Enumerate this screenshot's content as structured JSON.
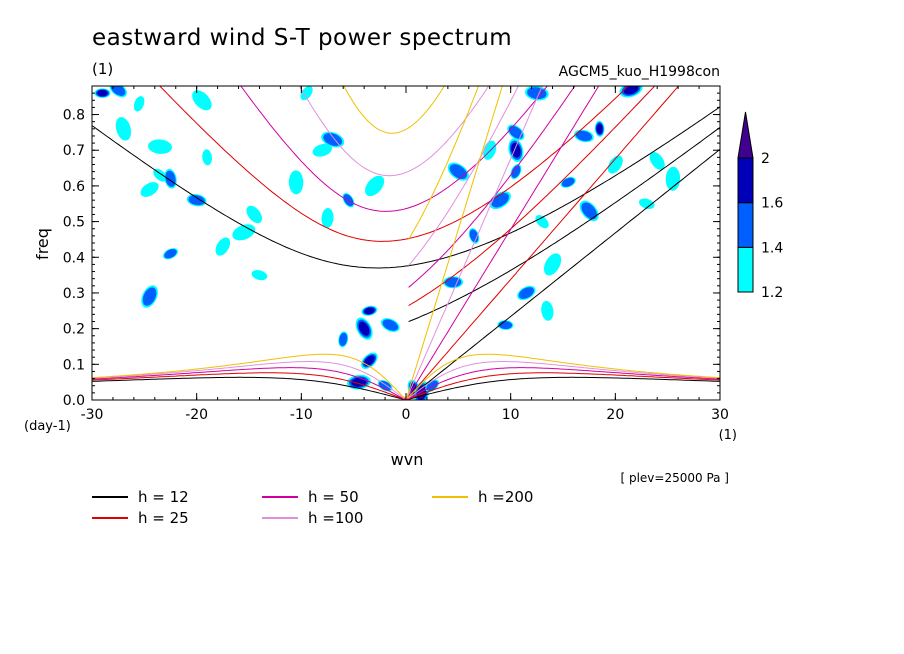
{
  "chart_data": {
    "type": "heatmap",
    "title": "eastward wind S-T power spectrum",
    "subtitle_left": "(1)",
    "subtitle_right": "AGCM5_kuo_H1998con",
    "xlabel": "wvn",
    "ylabel": "freq",
    "x_unit": "(1)",
    "y_unit": "(day-1)",
    "annotation": "[ plev=25000 Pa ]",
    "xlim": [
      -30,
      30
    ],
    "ylim": [
      0,
      0.88
    ],
    "x_ticks": [
      -30,
      -20,
      -10,
      0,
      10,
      20,
      30
    ],
    "x_tick_labels": [
      "-30",
      "-20",
      "-10",
      "0",
      "10",
      "20",
      "30"
    ],
    "y_ticks": [
      0,
      0.1,
      0.2,
      0.3,
      0.4,
      0.5,
      0.6,
      0.7,
      0.8
    ],
    "y_tick_labels": [
      "0.0",
      "0.1",
      "0.2",
      "0.3",
      "0.4",
      "0.5",
      "0.6",
      "0.7",
      "0.8"
    ],
    "colorbar": {
      "levels": [
        1.2,
        1.4,
        1.6,
        2
      ],
      "labels": [
        "1.2",
        "1.4",
        "1.6",
        "2"
      ],
      "colors": [
        "#00ffff",
        "#0060ff",
        "#0000b8",
        "#400090"
      ]
    },
    "dispersion_curves": [
      {
        "name": "h = 12",
        "h": 12,
        "color": "#000000"
      },
      {
        "name": "h = 25",
        "h": 25,
        "color": "#e00000"
      },
      {
        "name": "h = 50",
        "h": 50,
        "color": "#d000a0"
      },
      {
        "name": "h =100",
        "h": 100,
        "color": "#e090e0"
      },
      {
        "name": "h =200",
        "h": 200,
        "color": "#f0c000"
      }
    ],
    "contour_blobs": [
      {
        "x": -29.0,
        "y": 0.86,
        "level": 3
      },
      {
        "x": -27.5,
        "y": 0.87,
        "level": 2
      },
      {
        "x": -27.0,
        "y": 0.76,
        "level": 1
      },
      {
        "x": -25.5,
        "y": 0.83,
        "level": 1
      },
      {
        "x": -24.5,
        "y": 0.59,
        "level": 1
      },
      {
        "x": -23.5,
        "y": 0.71,
        "level": 1
      },
      {
        "x": -23.5,
        "y": 0.63,
        "level": 1
      },
      {
        "x": -22.5,
        "y": 0.62,
        "level": 2
      },
      {
        "x": -24.5,
        "y": 0.29,
        "level": 2
      },
      {
        "x": -22.5,
        "y": 0.41,
        "level": 2
      },
      {
        "x": -20.0,
        "y": 0.56,
        "level": 2
      },
      {
        "x": -19.5,
        "y": 0.84,
        "level": 1
      },
      {
        "x": -19.0,
        "y": 0.68,
        "level": 1
      },
      {
        "x": -17.5,
        "y": 0.43,
        "level": 1
      },
      {
        "x": -15.5,
        "y": 0.47,
        "level": 1
      },
      {
        "x": -14.0,
        "y": 0.35,
        "level": 1
      },
      {
        "x": -14.5,
        "y": 0.52,
        "level": 1
      },
      {
        "x": -10.5,
        "y": 0.61,
        "level": 1
      },
      {
        "x": -9.5,
        "y": 0.86,
        "level": 1
      },
      {
        "x": -8.0,
        "y": 0.7,
        "level": 1
      },
      {
        "x": -7.0,
        "y": 0.73,
        "level": 2
      },
      {
        "x": -5.5,
        "y": 0.56,
        "level": 2
      },
      {
        "x": -7.5,
        "y": 0.51,
        "level": 1
      },
      {
        "x": -3.0,
        "y": 0.6,
        "level": 1
      },
      {
        "x": -3.5,
        "y": 0.25,
        "level": 3
      },
      {
        "x": -1.5,
        "y": 0.21,
        "level": 2
      },
      {
        "x": -4.0,
        "y": 0.2,
        "level": 3
      },
      {
        "x": -6.0,
        "y": 0.17,
        "level": 2
      },
      {
        "x": -3.5,
        "y": 0.11,
        "level": 3
      },
      {
        "x": -4.5,
        "y": 0.05,
        "level": 3
      },
      {
        "x": -2.0,
        "y": 0.04,
        "level": 2
      },
      {
        "x": 0.8,
        "y": 0.03,
        "level": 3
      },
      {
        "x": 1.5,
        "y": 0.02,
        "level": 4
      },
      {
        "x": 2.5,
        "y": 0.04,
        "level": 2
      },
      {
        "x": 4.5,
        "y": 0.33,
        "level": 2
      },
      {
        "x": 5.0,
        "y": 0.64,
        "level": 2
      },
      {
        "x": 6.5,
        "y": 0.46,
        "level": 2
      },
      {
        "x": 8.0,
        "y": 0.7,
        "level": 1
      },
      {
        "x": 9.0,
        "y": 0.56,
        "level": 2
      },
      {
        "x": 9.5,
        "y": 0.21,
        "level": 2
      },
      {
        "x": 10.5,
        "y": 0.75,
        "level": 2
      },
      {
        "x": 10.5,
        "y": 0.7,
        "level": 3
      },
      {
        "x": 10.5,
        "y": 0.64,
        "level": 2
      },
      {
        "x": 11.5,
        "y": 0.3,
        "level": 2
      },
      {
        "x": 12.5,
        "y": 0.86,
        "level": 2
      },
      {
        "x": 13.0,
        "y": 0.5,
        "level": 1
      },
      {
        "x": 13.5,
        "y": 0.25,
        "level": 1
      },
      {
        "x": 14.0,
        "y": 0.38,
        "level": 1
      },
      {
        "x": 15.5,
        "y": 0.61,
        "level": 2
      },
      {
        "x": 17.0,
        "y": 0.74,
        "level": 2
      },
      {
        "x": 17.5,
        "y": 0.53,
        "level": 2
      },
      {
        "x": 18.5,
        "y": 0.76,
        "level": 3
      },
      {
        "x": 20.0,
        "y": 0.66,
        "level": 1
      },
      {
        "x": 21.5,
        "y": 0.87,
        "level": 3
      },
      {
        "x": 23.0,
        "y": 0.55,
        "level": 1
      },
      {
        "x": 24.0,
        "y": 0.67,
        "level": 1
      },
      {
        "x": 25.5,
        "y": 0.62,
        "level": 1
      }
    ],
    "grid": false,
    "legend_placement": "below"
  }
}
